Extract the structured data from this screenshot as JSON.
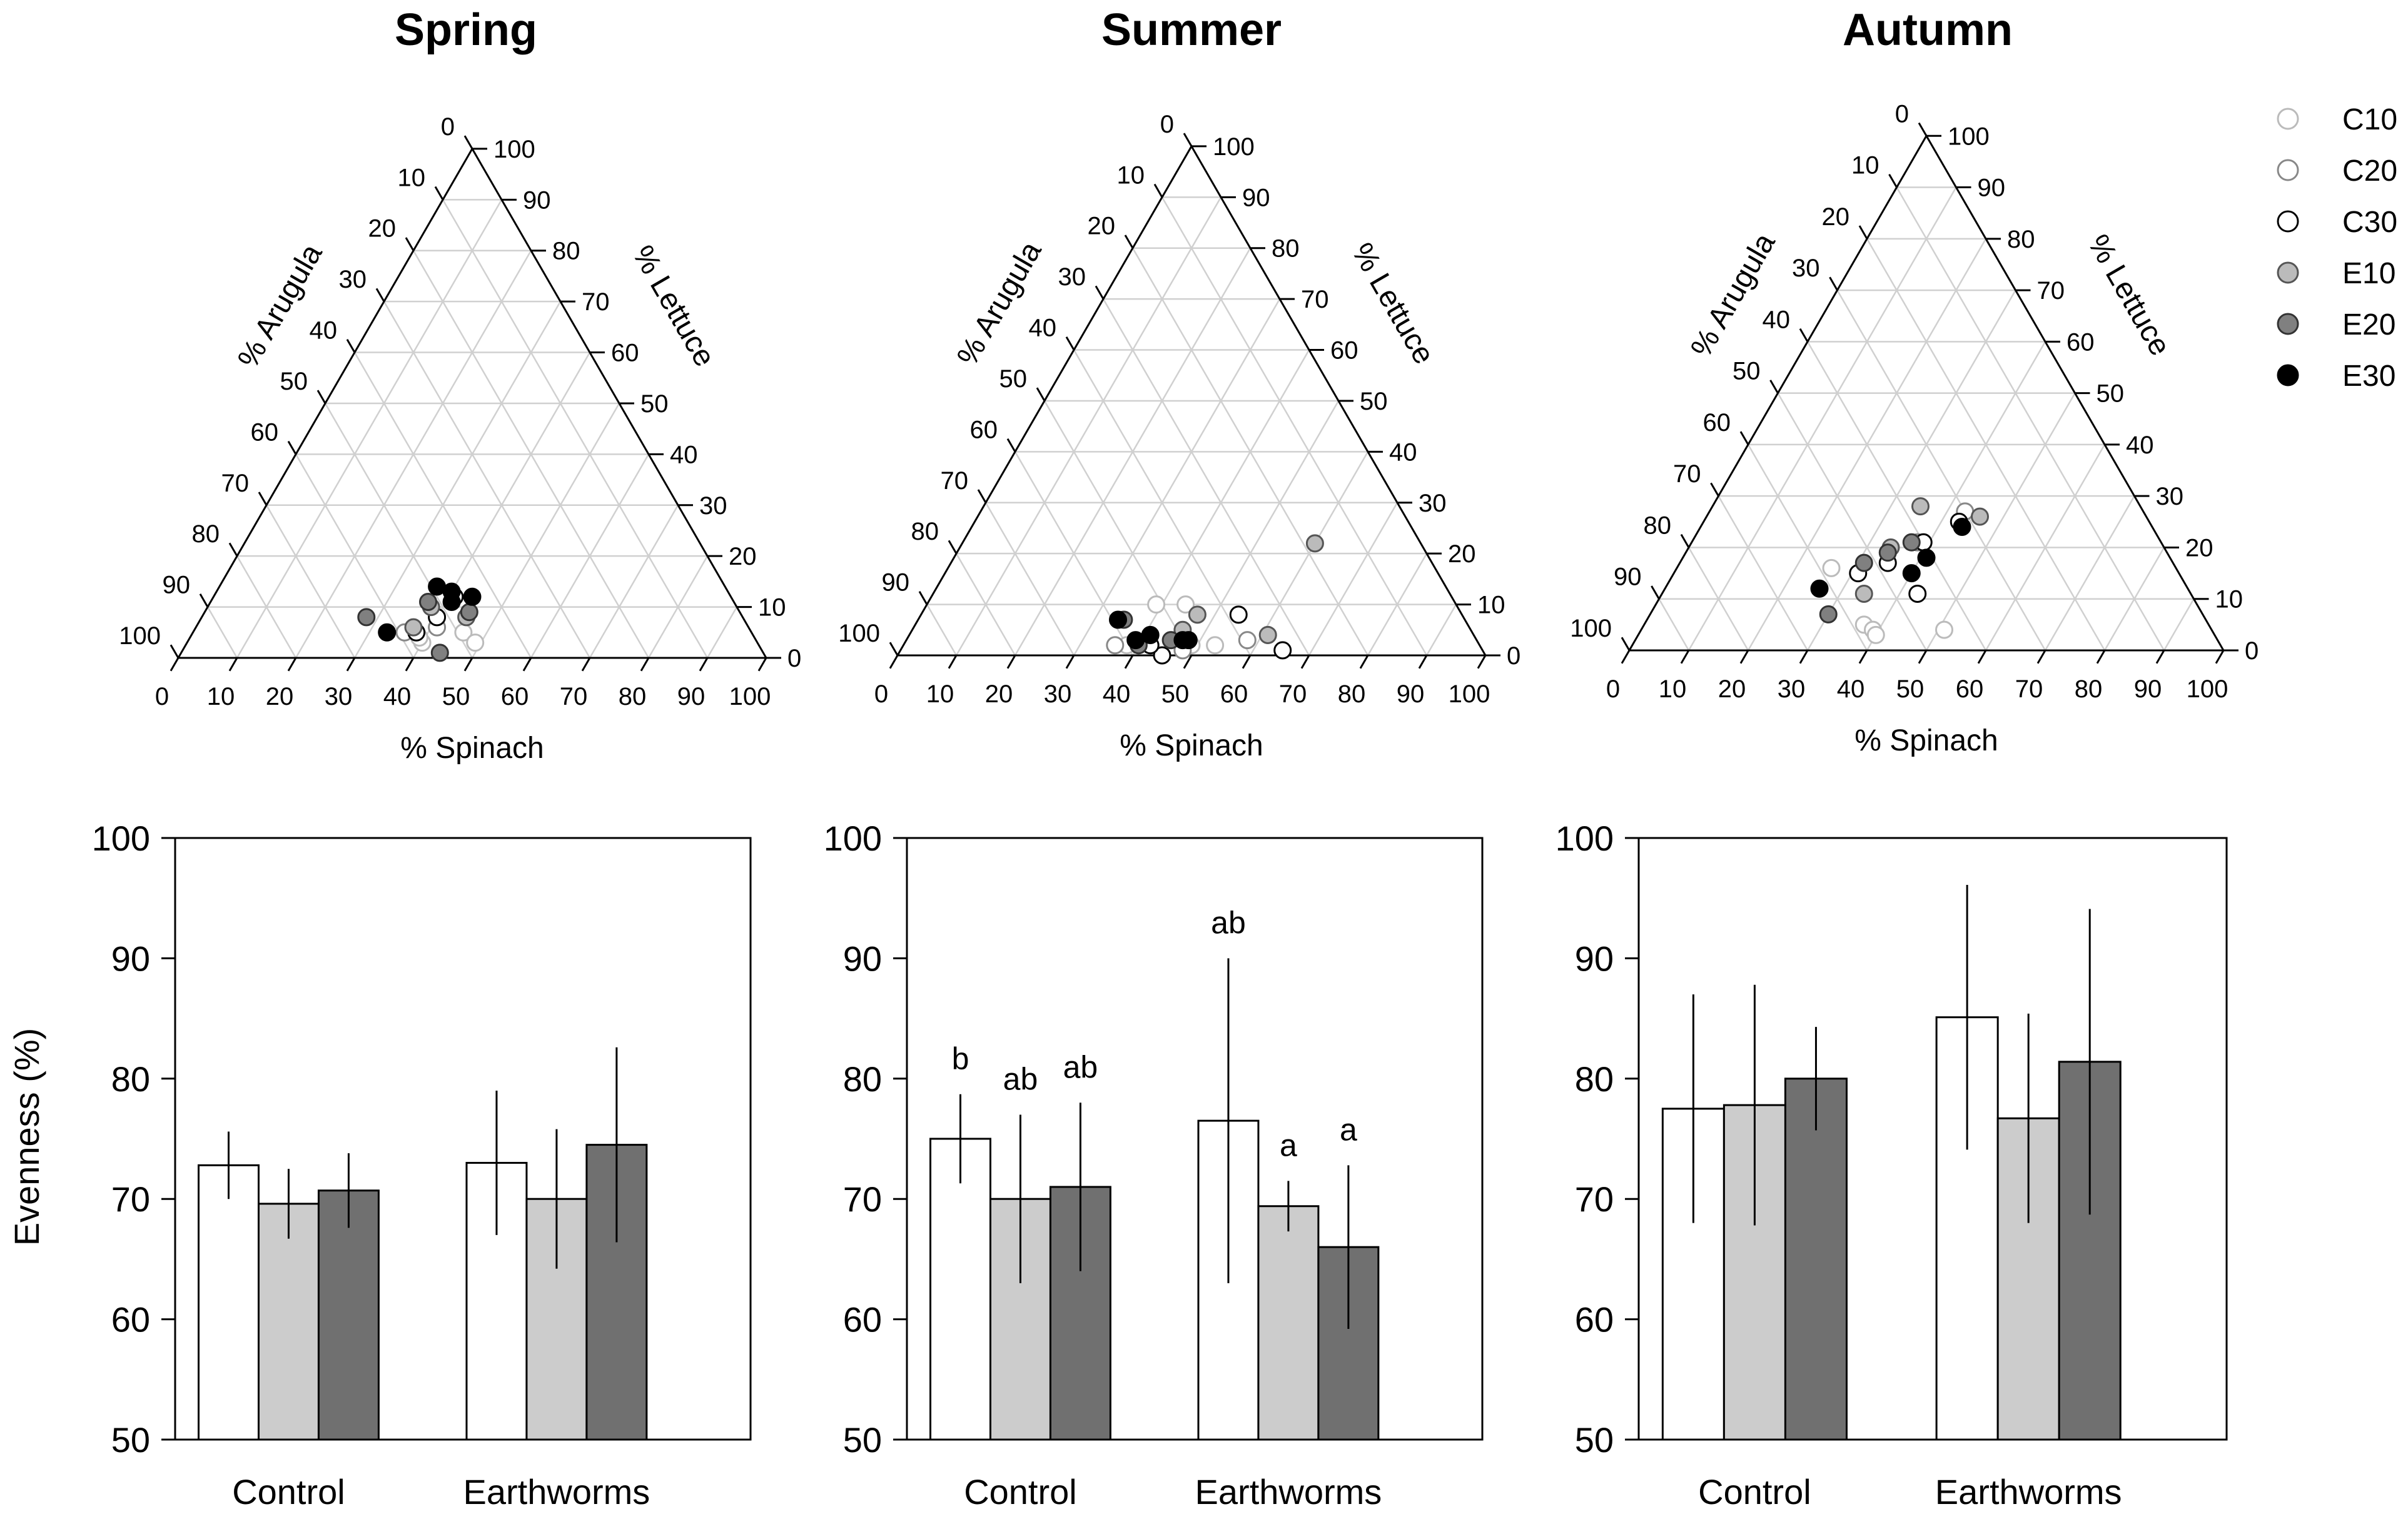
{
  "chart_data": {
    "ternary": [
      {
        "type": "scatter",
        "title": "Spring",
        "xlabel": "% Spinach",
        "left_label": "% Arugula",
        "right_label": "% Lettuce",
        "tick_labels": [
          "0",
          "10",
          "20",
          "30",
          "40",
          "50",
          "60",
          "70",
          "80",
          "90",
          "100"
        ],
        "points": [
          {
            "g": "C10",
            "s": 46,
            "l": 5
          },
          {
            "g": "C10",
            "s": 49,
            "l": 3
          },
          {
            "g": "C10",
            "s": 40,
            "l": 3
          },
          {
            "g": "C10",
            "s": 39,
            "l": 4
          },
          {
            "g": "C20",
            "s": 36,
            "l": 5
          },
          {
            "g": "C20",
            "s": 41,
            "l": 6
          },
          {
            "g": "C30",
            "s": 38,
            "l": 5
          },
          {
            "g": "C30",
            "s": 41,
            "l": 12
          },
          {
            "g": "C30",
            "s": 40,
            "l": 8
          },
          {
            "g": "E10",
            "s": 45,
            "l": 8
          },
          {
            "g": "E10",
            "s": 38,
            "l": 10
          },
          {
            "g": "E10",
            "s": 37,
            "l": 6
          },
          {
            "g": "E20",
            "s": 45,
            "l": 9
          },
          {
            "g": "E20",
            "s": 44,
            "l": 1
          },
          {
            "g": "E20",
            "s": 28,
            "l": 8
          },
          {
            "g": "E20",
            "s": 37,
            "l": 11
          },
          {
            "g": "E30",
            "s": 40,
            "l": 13
          },
          {
            "g": "E30",
            "s": 37,
            "l": 14
          },
          {
            "g": "E30",
            "s": 33,
            "l": 5
          },
          {
            "g": "E30",
            "s": 44,
            "l": 12
          },
          {
            "g": "E30",
            "s": 41,
            "l": 11
          }
        ]
      },
      {
        "type": "scatter",
        "title": "Summer",
        "xlabel": "% Spinach",
        "left_label": "% Arugula",
        "right_label": "% Lettuce",
        "tick_labels": [
          "0",
          "10",
          "20",
          "30",
          "40",
          "50",
          "60",
          "70",
          "80",
          "90",
          "100"
        ],
        "points": [
          {
            "g": "C10",
            "s": 39,
            "l": 10
          },
          {
            "g": "C10",
            "s": 44,
            "l": 10
          },
          {
            "g": "C10",
            "s": 38,
            "l": 2
          },
          {
            "g": "C10",
            "s": 53,
            "l": 2
          },
          {
            "g": "C10",
            "s": 49,
            "l": 2
          },
          {
            "g": "C20",
            "s": 58,
            "l": 3
          },
          {
            "g": "C20",
            "s": 48,
            "l": 1
          },
          {
            "g": "C20",
            "s": 36,
            "l": 2
          },
          {
            "g": "C30",
            "s": 45,
            "l": 0
          },
          {
            "g": "C30",
            "s": 54,
            "l": 8
          },
          {
            "g": "C30",
            "s": 65,
            "l": 1
          },
          {
            "g": "C30",
            "s": 42,
            "l": 2
          },
          {
            "g": "E10",
            "s": 47,
            "l": 8
          },
          {
            "g": "E10",
            "s": 46,
            "l": 5
          },
          {
            "g": "E10",
            "s": 61,
            "l": 4
          },
          {
            "g": "E10",
            "s": 60,
            "l": 22
          },
          {
            "g": "E20",
            "s": 45,
            "l": 3
          },
          {
            "g": "E20",
            "s": 40,
            "l": 2
          },
          {
            "g": "E20",
            "s": 35,
            "l": 7
          },
          {
            "g": "E30",
            "s": 41,
            "l": 4
          },
          {
            "g": "E30",
            "s": 39,
            "l": 3
          },
          {
            "g": "E30",
            "s": 48,
            "l": 3
          },
          {
            "g": "E30",
            "s": 34,
            "l": 7
          },
          {
            "g": "E30",
            "s": 47,
            "l": 3
          }
        ]
      },
      {
        "type": "scatter",
        "title": "Autumn",
        "xlabel": "% Spinach",
        "left_label": "% Arugula",
        "right_label": "% Lettuce",
        "tick_labels": [
          "0",
          "10",
          "20",
          "30",
          "40",
          "50",
          "60",
          "70",
          "80",
          "90",
          "100"
        ],
        "points": [
          {
            "g": "C10",
            "s": 26,
            "l": 16
          },
          {
            "g": "C10",
            "s": 37,
            "l": 5
          },
          {
            "g": "C10",
            "s": 39,
            "l": 4
          },
          {
            "g": "C10",
            "s": 40,
            "l": 3
          },
          {
            "g": "C10",
            "s": 51,
            "l": 4
          },
          {
            "g": "C20",
            "s": 43,
            "l": 27
          },
          {
            "g": "C20",
            "s": 38,
            "l": 21
          },
          {
            "g": "C30",
            "s": 31,
            "l": 15
          },
          {
            "g": "C30",
            "s": 35,
            "l": 17
          },
          {
            "g": "C30",
            "s": 39,
            "l": 21
          },
          {
            "g": "C30",
            "s": 43,
            "l": 11
          },
          {
            "g": "C30",
            "s": 43,
            "l": 25
          },
          {
            "g": "E10",
            "s": 46,
            "l": 26
          },
          {
            "g": "E10",
            "s": 35,
            "l": 28
          },
          {
            "g": "E10",
            "s": 34,
            "l": 20
          },
          {
            "g": "E10",
            "s": 34,
            "l": 11
          },
          {
            "g": "E20",
            "s": 34,
            "l": 19
          },
          {
            "g": "E20",
            "s": 37,
            "l": 21
          },
          {
            "g": "E20",
            "s": 30,
            "l": 7
          },
          {
            "g": "E20",
            "s": 31,
            "l": 17
          },
          {
            "g": "E30",
            "s": 26,
            "l": 12
          },
          {
            "g": "E30",
            "s": 41,
            "l": 18
          },
          {
            "g": "E30",
            "s": 44,
            "l": 24
          },
          {
            "g": "E30",
            "s": 40,
            "l": 15
          }
        ]
      }
    ],
    "bar": [
      {
        "type": "bar",
        "title": "Spring",
        "ylabel": "Evenness (%)",
        "ylim": [
          50,
          100
        ],
        "yticks": [
          "50",
          "60",
          "70",
          "80",
          "90",
          "100"
        ],
        "categories": [
          "Control",
          "Earthworms"
        ],
        "series": [
          {
            "name": "10",
            "color": "#ffffff",
            "values": [
              72.8,
              73.0
            ],
            "errors": [
              2.8,
              6.0
            ],
            "letters": [
              "",
              ""
            ]
          },
          {
            "name": "20",
            "color": "#cccccc",
            "values": [
              69.6,
              70.0
            ],
            "errors": [
              2.9,
              5.8
            ],
            "letters": [
              "",
              ""
            ]
          },
          {
            "name": "30",
            "color": "#707070",
            "values": [
              70.7,
              74.5
            ],
            "errors": [
              3.1,
              8.1
            ],
            "letters": [
              "",
              ""
            ]
          }
        ]
      },
      {
        "type": "bar",
        "title": "Summer",
        "ylabel": "",
        "ylim": [
          50,
          100
        ],
        "yticks": [
          "50",
          "60",
          "70",
          "80",
          "90",
          "100"
        ],
        "categories": [
          "Control",
          "Earthworms"
        ],
        "series": [
          {
            "name": "10",
            "color": "#ffffff",
            "values": [
              75.0,
              76.5
            ],
            "errors": [
              3.7,
              13.5
            ],
            "letters": [
              "b",
              "ab"
            ]
          },
          {
            "name": "20",
            "color": "#cccccc",
            "values": [
              70.0,
              69.4
            ],
            "errors": [
              7.0,
              2.1
            ],
            "letters": [
              "ab",
              "a"
            ]
          },
          {
            "name": "30",
            "color": "#707070",
            "values": [
              71.0,
              66.0
            ],
            "errors": [
              7.0,
              6.8
            ],
            "letters": [
              "ab",
              "a"
            ]
          }
        ]
      },
      {
        "type": "bar",
        "title": "Autumn",
        "ylabel": "",
        "ylim": [
          50,
          100
        ],
        "yticks": [
          "50",
          "60",
          "70",
          "80",
          "90",
          "100"
        ],
        "categories": [
          "Control",
          "Earthworms"
        ],
        "series": [
          {
            "name": "10",
            "color": "#ffffff",
            "values": [
              77.5,
              85.1
            ],
            "errors": [
              9.5,
              11.0
            ],
            "letters": [
              "",
              ""
            ]
          },
          {
            "name": "20",
            "color": "#cccccc",
            "values": [
              77.8,
              76.7
            ],
            "errors": [
              10.0,
              8.7
            ],
            "letters": [
              "",
              ""
            ]
          },
          {
            "name": "30",
            "color": "#707070",
            "values": [
              80.0,
              81.4
            ],
            "errors": [
              4.3,
              12.7
            ],
            "letters": [
              "",
              ""
            ]
          }
        ]
      }
    ],
    "legend": [
      {
        "label": "C10",
        "fill": "#ffffff",
        "stroke": "#bbbbbb"
      },
      {
        "label": "C20",
        "fill": "#ffffff",
        "stroke": "#888888"
      },
      {
        "label": "C30",
        "fill": "#ffffff",
        "stroke": "#000000"
      },
      {
        "label": "E10",
        "fill": "#bbbbbb",
        "stroke": "#555555"
      },
      {
        "label": "E20",
        "fill": "#808080",
        "stroke": "#333333"
      },
      {
        "label": "E30",
        "fill": "#000000",
        "stroke": "#000000"
      }
    ]
  }
}
